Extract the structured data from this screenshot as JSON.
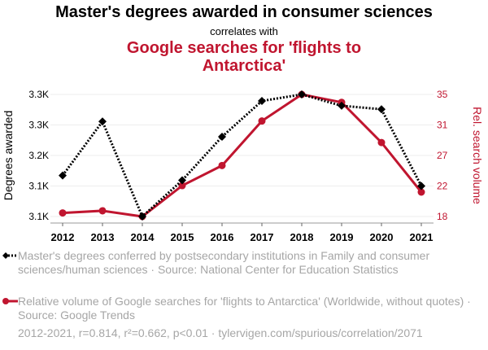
{
  "header": {
    "title": "Master's degrees awarded in consumer sciences",
    "subtitle": "correlates with",
    "title2": "Google searches for 'flights to Antarctica'"
  },
  "legend": {
    "series1": "Master's degrees conferred by postsecondary institutions in Family and consumer sciences/human sciences · Source: National Center for Education Statistics",
    "series2": "Relative volume of Google searches for 'flights to Antarctica' (Worldwide, without quotes) · Source: Google Trends"
  },
  "footer": "2012-2021, r=0.814, r²=0.662, p<0.01 · tylervigen.com/spurious/correlation/2071",
  "colors": {
    "series1": "#000000",
    "series2": "#c0152f",
    "grid": "#eeeeee",
    "legend_text": "#a6a6a6"
  },
  "chart_data": {
    "type": "line",
    "title": "Master's degrees awarded in consumer sciences correlates with Google searches for 'flights to Antarctica'",
    "x": [
      2012,
      2013,
      2014,
      2015,
      2016,
      2017,
      2018,
      2019,
      2020,
      2021
    ],
    "xticks": [
      "2012",
      "2013",
      "2014",
      "2015",
      "2016",
      "2017",
      "2018",
      "2019",
      "2020",
      "2021"
    ],
    "ylabel_left": "Degrees awarded",
    "ylabel_right": "Rel. search volume",
    "yticks_left": [
      "3.3K",
      "3.3K",
      "3.2K",
      "3.1K",
      "3.1K"
    ],
    "yticks_right": [
      "35",
      "31",
      "27",
      "22",
      "18"
    ],
    "ylim_left": [
      3060,
      3340
    ],
    "ylim_right": [
      18,
      35
    ],
    "grid": true,
    "series": [
      {
        "name": "Master's degrees awarded",
        "axis": "left",
        "style": "dotted",
        "marker": "diamond",
        "values": [
          3154,
          3278,
          3060,
          3143,
          3243,
          3325,
          3340,
          3314,
          3306,
          3130
        ]
      },
      {
        "name": "Relative search volume",
        "axis": "right",
        "style": "solid",
        "marker": "circle",
        "values": [
          18.5,
          18.8,
          18,
          22.3,
          25.1,
          31.3,
          35,
          33.9,
          28.3,
          21.4
        ]
      }
    ]
  }
}
